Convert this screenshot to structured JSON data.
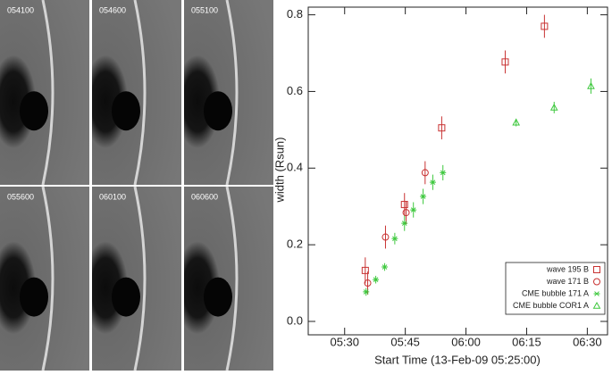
{
  "panels": [
    "054100",
    "054600",
    "055100",
    "055600",
    "060100",
    "060600"
  ],
  "chart_data": {
    "type": "scatter",
    "xlabel": "Start Time (13-Feb-09 05:25:00)",
    "ylabel": "width (Rsun)",
    "xlim": [
      321,
      395
    ],
    "xticks": [
      {
        "value": 330,
        "label": "05:30"
      },
      {
        "value": 345,
        "label": "05:45"
      },
      {
        "value": 360,
        "label": "06:00"
      },
      {
        "value": 375,
        "label": "06:15"
      },
      {
        "value": 390,
        "label": "06:30"
      }
    ],
    "ylim": [
      -0.035,
      0.82
    ],
    "yticks": [
      {
        "value": 0,
        "label": "0.0"
      },
      {
        "value": 0.2,
        "label": "0.2"
      },
      {
        "value": 0.4,
        "label": "0.4"
      },
      {
        "value": 0.6,
        "label": "0.6"
      },
      {
        "value": 0.8,
        "label": "0.8"
      }
    ],
    "legend": "lower right",
    "series": [
      {
        "name": "wave 195 B",
        "color": "#c83232",
        "marker": "square",
        "x": [
          335.1,
          344.8,
          354.0,
          369.7,
          379.4
        ],
        "values": [
          0.133,
          0.305,
          0.505,
          0.677,
          0.77
        ],
        "errors": [
          0.034,
          0.03,
          0.03,
          0.03,
          0.03
        ]
      },
      {
        "name": "wave 171 B",
        "color": "#c83232",
        "marker": "circle",
        "x": [
          335.7,
          340.1,
          345.2,
          349.9
        ],
        "values": [
          0.1,
          0.22,
          0.284,
          0.388
        ],
        "errors": [
          0.03,
          0.03,
          0.03,
          0.03
        ]
      },
      {
        "name": "CME bubble 171 A",
        "color": "#3ec83e",
        "marker": "asterisk",
        "x": [
          335.3,
          337.7,
          339.9,
          342.4,
          344.8,
          347.0,
          349.4,
          351.8,
          354.3
        ],
        "values": [
          0.077,
          0.109,
          0.142,
          0.216,
          0.256,
          0.291,
          0.326,
          0.363,
          0.388
        ],
        "errors": [
          0.01,
          0.01,
          0.01,
          0.015,
          0.02,
          0.02,
          0.02,
          0.02,
          0.02
        ]
      },
      {
        "name": "CME bubble COR1 A",
        "color": "#3ec83e",
        "marker": "triangle",
        "x": [
          372.4,
          381.8,
          390.9
        ],
        "values": [
          0.519,
          0.558,
          0.614
        ],
        "errors": [
          0.01,
          0.015,
          0.02
        ]
      }
    ]
  }
}
